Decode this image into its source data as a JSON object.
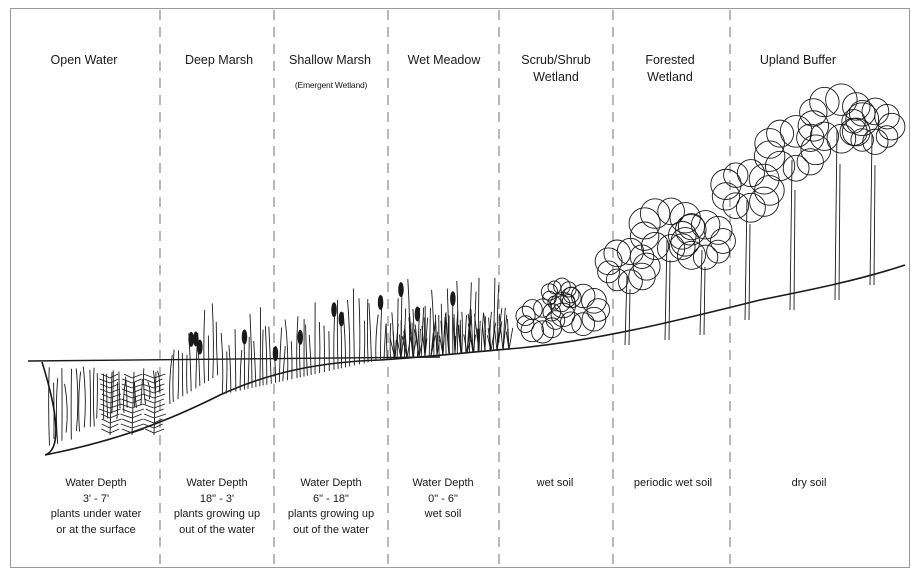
{
  "zones": [
    {
      "label": "Open Water",
      "description": "Water Depth\n3' - 7'\nplants under water\nor at the surface"
    },
    {
      "label": "Deep Marsh",
      "description": "Water Depth\n18\" - 3'\nplants growing up\nout of the water"
    },
    {
      "label": "Shallow Marsh",
      "sublabel": "(Emergent Wetland)",
      "description": "Water Depth\n6\" - 18\"\nplants growing up\nout of the water"
    },
    {
      "label": "Wet Meadow",
      "description": "Water Depth\n0\" - 6\"\nwet soil"
    },
    {
      "label": "Scrub/Shrub\nWetland",
      "description": "wet soil"
    },
    {
      "label": "Forested\nWetland",
      "description": "periodic wet soil"
    },
    {
      "label": "Upland Buffer",
      "description": "dry soil"
    }
  ],
  "colors": {
    "ink": "#1a1a1a",
    "divider": "#8a8a8a",
    "frame": "#9a9a9a"
  }
}
